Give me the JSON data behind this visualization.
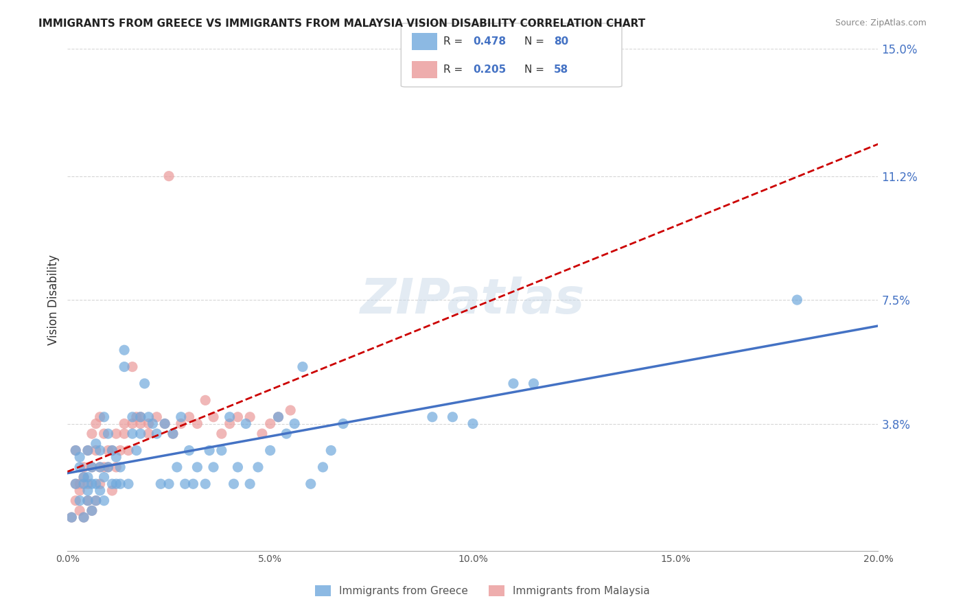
{
  "title": "IMMIGRANTS FROM GREECE VS IMMIGRANTS FROM MALAYSIA VISION DISABILITY CORRELATION CHART",
  "source": "Source: ZipAtlas.com",
  "xlabel_bottom": "",
  "ylabel": "Vision Disability",
  "xlim": [
    0.0,
    0.2
  ],
  "ylim": [
    0.0,
    0.15
  ],
  "xtick_labels": [
    "0.0%",
    "5.0%",
    "10.0%",
    "15.0%",
    "20.0%"
  ],
  "xtick_vals": [
    0.0,
    0.05,
    0.1,
    0.15,
    0.2
  ],
  "ytick_labels_right": [
    "3.8%",
    "7.5%",
    "11.2%",
    "15.0%"
  ],
  "ytick_vals_right": [
    0.038,
    0.075,
    0.112,
    0.15
  ],
  "color_greece": "#6fa8dc",
  "color_malaysia": "#ea9999",
  "color_trendline_greece": "#4472c4",
  "color_trendline_malaysia": "#cc0000",
  "legend_R_greece": "R = 0.478",
  "legend_N_greece": "N = 80",
  "legend_R_malaysia": "R = 0.205",
  "legend_N_malaysia": "N = 58",
  "legend_label_greece": "Immigrants from Greece",
  "legend_label_malaysia": "Immigrants from Malaysia",
  "watermark": "ZIPatlas",
  "background_color": "#ffffff",
  "greece_scatter_x": [
    0.001,
    0.002,
    0.002,
    0.003,
    0.003,
    0.003,
    0.004,
    0.004,
    0.004,
    0.005,
    0.005,
    0.005,
    0.005,
    0.006,
    0.006,
    0.006,
    0.007,
    0.007,
    0.007,
    0.008,
    0.008,
    0.008,
    0.009,
    0.009,
    0.009,
    0.01,
    0.01,
    0.011,
    0.011,
    0.012,
    0.012,
    0.013,
    0.013,
    0.014,
    0.014,
    0.015,
    0.016,
    0.016,
    0.017,
    0.018,
    0.018,
    0.019,
    0.02,
    0.021,
    0.022,
    0.023,
    0.024,
    0.025,
    0.026,
    0.027,
    0.028,
    0.029,
    0.03,
    0.031,
    0.032,
    0.034,
    0.035,
    0.036,
    0.038,
    0.04,
    0.041,
    0.042,
    0.044,
    0.045,
    0.047,
    0.05,
    0.052,
    0.054,
    0.056,
    0.058,
    0.06,
    0.063,
    0.065,
    0.068,
    0.1,
    0.11,
    0.115,
    0.18,
    0.09,
    0.095
  ],
  "greece_scatter_y": [
    0.01,
    0.02,
    0.03,
    0.015,
    0.025,
    0.028,
    0.01,
    0.02,
    0.022,
    0.015,
    0.018,
    0.022,
    0.03,
    0.012,
    0.02,
    0.025,
    0.015,
    0.02,
    0.032,
    0.018,
    0.025,
    0.03,
    0.015,
    0.022,
    0.04,
    0.025,
    0.035,
    0.02,
    0.03,
    0.02,
    0.028,
    0.02,
    0.025,
    0.055,
    0.06,
    0.02,
    0.035,
    0.04,
    0.03,
    0.035,
    0.04,
    0.05,
    0.04,
    0.038,
    0.035,
    0.02,
    0.038,
    0.02,
    0.035,
    0.025,
    0.04,
    0.02,
    0.03,
    0.02,
    0.025,
    0.02,
    0.03,
    0.025,
    0.03,
    0.04,
    0.02,
    0.025,
    0.038,
    0.02,
    0.025,
    0.03,
    0.04,
    0.035,
    0.038,
    0.055,
    0.02,
    0.025,
    0.03,
    0.038,
    0.038,
    0.05,
    0.05,
    0.075,
    0.04,
    0.04
  ],
  "malaysia_scatter_x": [
    0.001,
    0.002,
    0.002,
    0.003,
    0.003,
    0.004,
    0.004,
    0.005,
    0.005,
    0.006,
    0.006,
    0.007,
    0.007,
    0.008,
    0.008,
    0.009,
    0.01,
    0.011,
    0.012,
    0.013,
    0.014,
    0.015,
    0.016,
    0.017,
    0.018,
    0.02,
    0.022,
    0.024,
    0.026,
    0.028,
    0.03,
    0.032,
    0.034,
    0.036,
    0.038,
    0.04,
    0.042,
    0.045,
    0.048,
    0.05,
    0.052,
    0.055,
    0.002,
    0.003,
    0.004,
    0.005,
    0.006,
    0.007,
    0.008,
    0.009,
    0.01,
    0.011,
    0.012,
    0.014,
    0.016,
    0.018,
    0.02,
    0.025
  ],
  "malaysia_scatter_y": [
    0.01,
    0.015,
    0.02,
    0.012,
    0.018,
    0.01,
    0.022,
    0.015,
    0.02,
    0.012,
    0.025,
    0.015,
    0.03,
    0.02,
    0.025,
    0.035,
    0.025,
    0.03,
    0.035,
    0.03,
    0.038,
    0.03,
    0.038,
    0.04,
    0.038,
    0.035,
    0.04,
    0.038,
    0.035,
    0.038,
    0.04,
    0.038,
    0.045,
    0.04,
    0.035,
    0.038,
    0.04,
    0.04,
    0.035,
    0.038,
    0.04,
    0.042,
    0.03,
    0.02,
    0.025,
    0.03,
    0.035,
    0.038,
    0.04,
    0.025,
    0.03,
    0.018,
    0.025,
    0.035,
    0.055,
    0.04,
    0.038,
    0.112
  ]
}
